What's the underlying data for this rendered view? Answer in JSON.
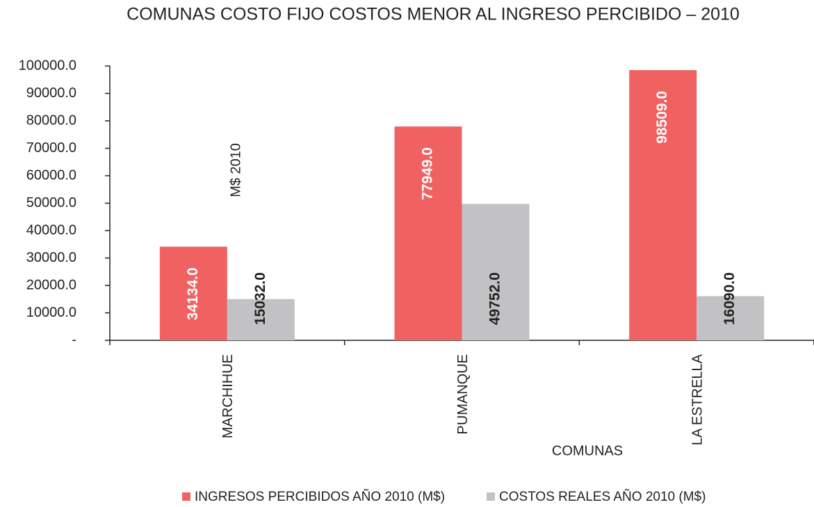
{
  "chart_data": {
    "type": "bar",
    "title": "COMUNAS COSTO FIJO COSTOS MENOR AL INGRESO PERCIBIDO – 2010",
    "y_axis_label": "M$ 2010",
    "x_axis_label": "COMUNAS",
    "categories": [
      "MARCHIHUE",
      "PUMANQUE",
      "LA ESTRELLA"
    ],
    "series": [
      {
        "name": "INGRESOS PERCIBIDOS AÑO 2010 (M$)",
        "color": "#f06262",
        "values": [
          34134,
          77949,
          98509
        ],
        "value_labels": [
          "34134.0",
          "77949.0",
          "98509.0"
        ]
      },
      {
        "name": "COSTOS REALES AÑO 2010 (M$)",
        "color": "#c2c2c4",
        "values": [
          15032,
          49752,
          16090
        ],
        "value_labels": [
          "15032.0",
          "49752.0",
          "16090.0"
        ]
      }
    ],
    "ylim": [
      0,
      100000
    ],
    "yticks": [
      {
        "value": 0,
        "label": "-"
      },
      {
        "value": 10000,
        "label": "10000.0"
      },
      {
        "value": 20000,
        "label": "20000.0"
      },
      {
        "value": 30000,
        "label": "30000.0"
      },
      {
        "value": 40000,
        "label": "40000.0"
      },
      {
        "value": 50000,
        "label": "50000.0"
      },
      {
        "value": 60000,
        "label": "60000.0"
      },
      {
        "value": 70000,
        "label": "70000.0"
      },
      {
        "value": 80000,
        "label": "80000.0"
      },
      {
        "value": 90000,
        "label": "90000.0"
      },
      {
        "value": 100000,
        "label": "100000.0"
      }
    ],
    "grid": false,
    "legend": "bottom"
  }
}
